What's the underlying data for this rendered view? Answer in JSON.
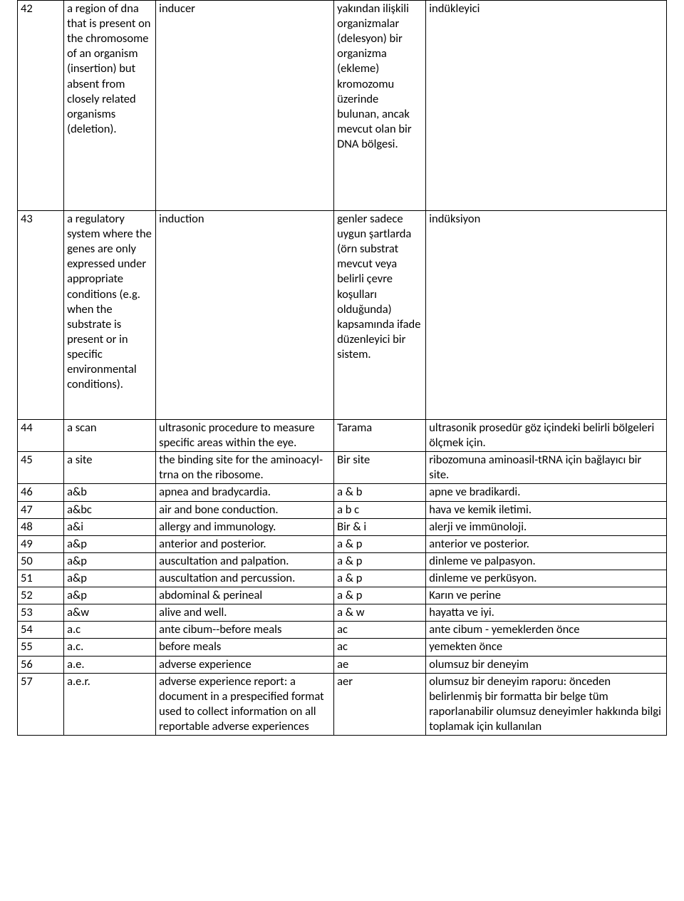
{
  "rows": [
    {
      "num": "42",
      "c1": "a region of dna that is present on the chromosome of an organism (insertion) but absent from closely related organisms (deletion).",
      "c2": "inducer",
      "c3": "yakından ilişkili organizmalar (delesyon) bir organizma (ekleme) kromozomu üzerinde bulunan, ancak mevcut olan bir DNA bölgesi.",
      "c4": "indükleyici"
    },
    {
      "num": "43",
      "c1": "a regulatory system where the genes are only expressed under appropriate conditions (e.g. when the substrate is present or in specific environmental conditions).",
      "c2": " induction",
      "c3": "genler sadece uygun şartlarda (örn substrat mevcut veya belirli çevre koşulları olduğunda) kapsamında ifade düzenleyici bir sistem.",
      "c4": "indüksiyon"
    },
    {
      "num": "44",
      "c1": "a scan",
      "c2": "ultrasonic procedure to measure specific areas within the eye.",
      "c3": "Tarama",
      "c4": "ultrasonik prosedür göz içindeki belirli bölgeleri ölçmek için."
    },
    {
      "num": "45",
      "c1": "a site",
      "c2": " the binding site for the aminoacyl-trna on the ribosome.",
      "c3": "Bir site",
      "c4": "ribozomuna aminoasil-tRNA için bağlayıcı bir site."
    },
    {
      "num": "46",
      "c1": "a&b",
      "c2": " apnea and bradycardia.",
      "c3": "a & b",
      "c4": "apne ve bradikardi."
    },
    {
      "num": "47",
      "c1": "a&bc",
      "c2": " air and bone conduction.",
      "c3": "a b c",
      "c4": "hava ve kemik iletimi."
    },
    {
      "num": "48",
      "c1": "a&i",
      "c2": " allergy and immunology.",
      "c3": "Bir & i",
      "c4": "alerji ve immünoloji."
    },
    {
      "num": "49",
      "c1": "a&p",
      "c2": " anterior and posterior.",
      "c3": "a & p",
      "c4": "anterior ve posterior."
    },
    {
      "num": "50",
      "c1": "a&p",
      "c2": " auscultation and palpation.",
      "c3": "a & p",
      "c4": "dinleme ve palpasyon."
    },
    {
      "num": "51",
      "c1": "a&p",
      "c2": " auscultation and percussion.",
      "c3": "a & p",
      "c4": "dinleme ve perküsyon."
    },
    {
      "num": "52",
      "c1": "a&p",
      "c2": "abdominal & perineal",
      "c3": "a & p",
      "c4": "Karın ve perine"
    },
    {
      "num": "53",
      "c1": "a&w",
      "c2": " alive and well.",
      "c3": "a & w",
      "c4": "hayatta ve iyi."
    },
    {
      "num": "54",
      "c1": "a.c",
      "c2": "ante cibum--before meals",
      "c3": "ac",
      "c4": "ante cibum - yemeklerden önce"
    },
    {
      "num": "55",
      "c1": "a.c.",
      "c2": "before meals",
      "c3": "ac",
      "c4": "yemekten önce"
    },
    {
      "num": "56",
      "c1": "a.e.",
      "c2": "adverse experience",
      "c3": "ae",
      "c4": "olumsuz bir deneyim"
    },
    {
      "num": "57",
      "c1": "a.e.r.",
      "c2": "adverse experience report: a document in a prespecified format used to collect information on all reportable adverse experiences",
      "c3": "aer",
      "c4": "olumsuz bir deneyim raporu: önceden belirlenmiş bir formatta bir belge tüm raporlanabilir olumsuz deneyimler hakkında bilgi toplamak için kullanılan"
    }
  ]
}
